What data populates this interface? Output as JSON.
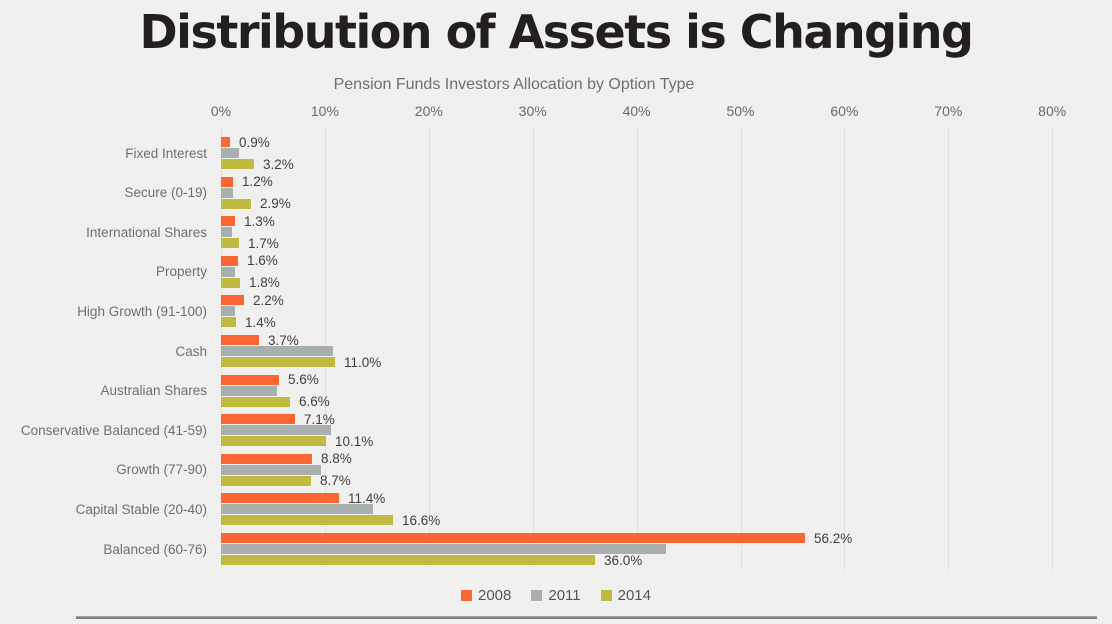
{
  "title": "Distribution of Assets is Changing",
  "subtitle": "Pension Funds Investors Allocation by Option Type",
  "colors": {
    "background": "#f0f0ee",
    "gridline": "#e2e2e0",
    "title_text": "#231f20",
    "muted_text": "#6e6f71",
    "data_label_text": "#414042",
    "series_2008": "#fc6632",
    "series_2011": "#a9aeae",
    "series_2014": "#c1ba40",
    "divider": "#8a8a8a"
  },
  "chart_data": {
    "type": "bar",
    "orientation": "horizontal",
    "title": "Pension Funds Investors Allocation by Option Type",
    "value_axis": {
      "position": "top",
      "unit": "%",
      "min": 0,
      "max": 80,
      "tick_values": [
        0,
        10,
        20,
        30,
        40,
        50,
        60,
        70,
        80
      ],
      "tick_labels": [
        "0%",
        "10%",
        "20%",
        "30%",
        "40%",
        "50%",
        "60%",
        "70%",
        "80%"
      ],
      "grid": true
    },
    "categories": [
      "Fixed Interest",
      "Secure (0-19)",
      "International Shares",
      "Property",
      "High Growth (91-100)",
      "Cash",
      "Australian Shares",
      "Conservative Balanced (41-59)",
      "Growth (77-90)",
      "Capital Stable (20-40)",
      "Balanced (60-76)"
    ],
    "series": [
      {
        "name": "2008",
        "color": "#fc6632",
        "values": [
          0.9,
          1.2,
          1.3,
          1.6,
          2.2,
          3.7,
          5.6,
          7.1,
          8.8,
          11.4,
          56.2
        ],
        "labels": [
          "0.9%",
          "1.2%",
          "1.3%",
          "1.6%",
          "2.2%",
          "3.7%",
          "5.6%",
          "7.1%",
          "8.8%",
          "11.4%",
          "56.2%"
        ]
      },
      {
        "name": "2011",
        "color": "#a9aeae",
        "values": [
          1.7,
          1.2,
          1.1,
          1.3,
          1.3,
          10.8,
          5.4,
          10.6,
          9.6,
          14.6,
          42.8
        ],
        "labels": [
          "",
          "",
          "",
          "",
          "",
          "",
          "",
          "",
          "",
          "",
          ""
        ]
      },
      {
        "name": "2014",
        "color": "#c1ba40",
        "values": [
          3.2,
          2.9,
          1.7,
          1.8,
          1.4,
          11.0,
          6.6,
          10.1,
          8.7,
          16.6,
          36.0
        ],
        "labels": [
          "3.2%",
          "2.9%",
          "1.7%",
          "1.8%",
          "1.4%",
          "11.0%",
          "6.6%",
          "10.1%",
          "8.7%",
          "16.6%",
          "36.0%"
        ]
      }
    ],
    "legend": {
      "position": "bottom",
      "entries": [
        "2008",
        "2011",
        "2014"
      ]
    }
  }
}
